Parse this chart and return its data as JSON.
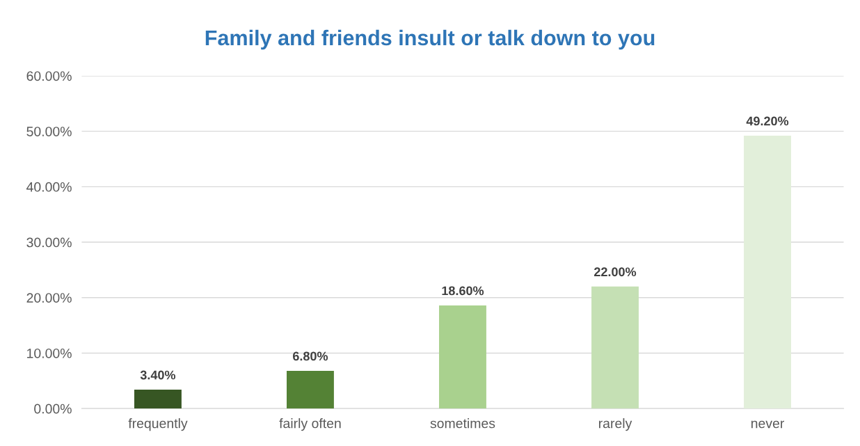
{
  "chart_data": {
    "type": "bar",
    "title": "Family and friends insult or talk down to you",
    "categories": [
      "frequently",
      "fairly often",
      "sometimes",
      "rarely",
      "never"
    ],
    "values": [
      3.4,
      6.8,
      18.6,
      22.0,
      49.2
    ],
    "colors": [
      "#375623",
      "#548235",
      "#a9d18e",
      "#c5e0b4",
      "#e2efda"
    ],
    "value_labels": [
      "3.40%",
      "6.80%",
      "18.60%",
      "22.00%",
      "49.20%"
    ],
    "ylim": [
      0,
      60
    ],
    "yticks": [
      {
        "value": 0,
        "label": "0.00%"
      },
      {
        "value": 10,
        "label": "10.00%"
      },
      {
        "value": 20,
        "label": "20.00%"
      },
      {
        "value": 30,
        "label": "30.00%"
      },
      {
        "value": 40,
        "label": "40.00%"
      },
      {
        "value": 50,
        "label": "50.00%"
      },
      {
        "value": 60,
        "label": "60.00%"
      }
    ],
    "grid": "y",
    "legend": false
  }
}
